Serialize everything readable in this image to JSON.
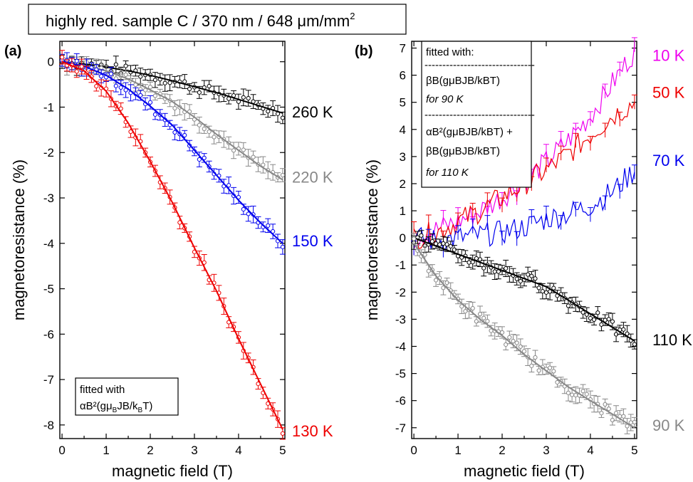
{
  "header": {
    "title": "highly red. sample C / 370 nm / 648 μm/mm",
    "title_sup": "2"
  },
  "chart_data": [
    {
      "type": "scatter",
      "panel": "(a)",
      "xlabel": "magnetic field (T)",
      "ylabel": "magnetoresistance (%)",
      "xlim": [
        -0.05,
        5.05
      ],
      "ylim": [
        -8.3,
        0.45
      ],
      "xticks": [
        0,
        1,
        2,
        3,
        4,
        5
      ],
      "xtick_labels": [
        "0",
        "1",
        "2",
        "3",
        "4",
        "5"
      ],
      "yticks": [
        0,
        -1,
        -2,
        -3,
        -4,
        -5,
        -6,
        -7,
        -8
      ],
      "ytick_labels": [
        "0",
        "-1",
        "-2",
        "-3",
        "-4",
        "-5",
        "-6",
        "-7",
        "-8"
      ],
      "grid": false,
      "annotation": {
        "lines": [
          "fitted with",
          "αB²(gμ",
          "B",
          "JB/k",
          "B",
          "T)"
        ]
      },
      "series": [
        {
          "name": "260 K",
          "color": "#000000",
          "x": [
            0.0,
            0.5,
            1.0,
            1.5,
            2.0,
            2.5,
            3.0,
            3.5,
            4.0,
            4.5,
            5.0
          ],
          "y": [
            0.0,
            -0.05,
            -0.12,
            -0.2,
            -0.3,
            -0.42,
            -0.55,
            -0.68,
            -0.83,
            -0.98,
            -1.13
          ]
        },
        {
          "name": "220 K",
          "color": "#888888",
          "x": [
            0.0,
            0.5,
            1.0,
            1.5,
            2.0,
            2.5,
            3.0,
            3.5,
            4.0,
            4.5,
            5.0
          ],
          "y": [
            0.0,
            -0.08,
            -0.2,
            -0.38,
            -0.62,
            -0.88,
            -1.22,
            -1.6,
            -1.95,
            -2.3,
            -2.6
          ]
        },
        {
          "name": "150 K",
          "color": "#0000ee",
          "x": [
            0.0,
            0.5,
            1.0,
            1.5,
            2.0,
            2.5,
            3.0,
            3.5,
            4.0,
            4.5,
            5.0
          ],
          "y": [
            0.0,
            -0.1,
            -0.3,
            -0.6,
            -0.98,
            -1.4,
            -1.95,
            -2.5,
            -3.05,
            -3.55,
            -4.0
          ]
        },
        {
          "name": "130 K",
          "color": "#ee0000",
          "x": [
            0.0,
            0.5,
            1.0,
            1.5,
            2.0,
            2.5,
            3.0,
            3.5,
            4.0,
            4.5,
            5.0
          ],
          "y": [
            0.0,
            -0.2,
            -0.65,
            -1.35,
            -2.2,
            -3.1,
            -4.1,
            -5.05,
            -6.1,
            -7.1,
            -8.1
          ]
        }
      ]
    },
    {
      "type": "line",
      "panel": "(b)",
      "xlabel": "magnetic field (T)",
      "ylabel": "magnetoresistance (%)",
      "xlim": [
        -0.05,
        5.05
      ],
      "ylim": [
        -7.4,
        7.25
      ],
      "xticks": [
        0,
        1,
        2,
        3,
        4,
        5
      ],
      "xtick_labels": [
        "0",
        "1",
        "2",
        "3",
        "4",
        "5"
      ],
      "yticks": [
        7,
        6,
        5,
        4,
        3,
        2,
        1,
        0,
        -1,
        -2,
        -3,
        -4,
        -5,
        -6,
        -7
      ],
      "ytick_labels": [
        "7",
        "6",
        "5",
        "4",
        "3",
        "2",
        "1",
        "0",
        "-1",
        "-2",
        "-3",
        "-4",
        "-5",
        "-6",
        "-7"
      ],
      "grid": false,
      "annotation": {
        "title": "fitted with:",
        "dashes": "-------------------------------",
        "fit_90": "βB(gμBJB/kBT)",
        "for_90": "for 90 K",
        "fit_110_a": "αB²(gμBJB/kBT) +",
        "fit_110_b": "βB(gμBJB/kBT)",
        "for_110": "for 110 K"
      },
      "series": [
        {
          "name": "10 K",
          "color": "#ee00ee",
          "x": [
            0.0,
            0.5,
            1.0,
            1.5,
            2.0,
            2.5,
            3.0,
            3.5,
            4.0,
            4.5,
            5.0
          ],
          "y": [
            0.0,
            0.3,
            0.6,
            1.0,
            1.5,
            2.1,
            2.8,
            3.6,
            4.5,
            5.7,
            6.9
          ]
        },
        {
          "name": "50 K",
          "color": "#ee0000",
          "x": [
            0.0,
            0.5,
            1.0,
            1.5,
            2.0,
            2.5,
            3.0,
            3.5,
            4.0,
            4.5,
            5.0
          ],
          "y": [
            0.0,
            0.2,
            0.6,
            1.0,
            1.5,
            2.0,
            2.5,
            3.1,
            3.8,
            4.5,
            5.0
          ]
        },
        {
          "name": "70 K",
          "color": "#0000ee",
          "x": [
            0.0,
            0.5,
            1.0,
            1.5,
            2.0,
            2.5,
            3.0,
            3.5,
            4.0,
            4.5,
            5.0
          ],
          "y": [
            0.0,
            -0.1,
            0.0,
            0.1,
            0.2,
            0.4,
            0.7,
            0.9,
            1.2,
            1.7,
            2.5
          ]
        },
        {
          "name": "110 K",
          "color": "#000000",
          "x": [
            0.0,
            0.5,
            1.0,
            1.5,
            2.0,
            2.5,
            3.0,
            3.5,
            4.0,
            4.5,
            5.0
          ],
          "y": [
            0.0,
            -0.3,
            -0.6,
            -0.9,
            -1.2,
            -1.5,
            -1.8,
            -2.3,
            -2.8,
            -3.3,
            -3.8
          ]
        },
        {
          "name": "90 K",
          "color": "#888888",
          "x": [
            0.0,
            0.5,
            1.0,
            1.5,
            2.0,
            2.5,
            3.0,
            3.5,
            4.0,
            4.5,
            5.0
          ],
          "y": [
            -0.2,
            -1.4,
            -2.3,
            -3.0,
            -3.6,
            -4.3,
            -4.9,
            -5.5,
            -6.0,
            -6.5,
            -7.0
          ]
        }
      ]
    }
  ]
}
